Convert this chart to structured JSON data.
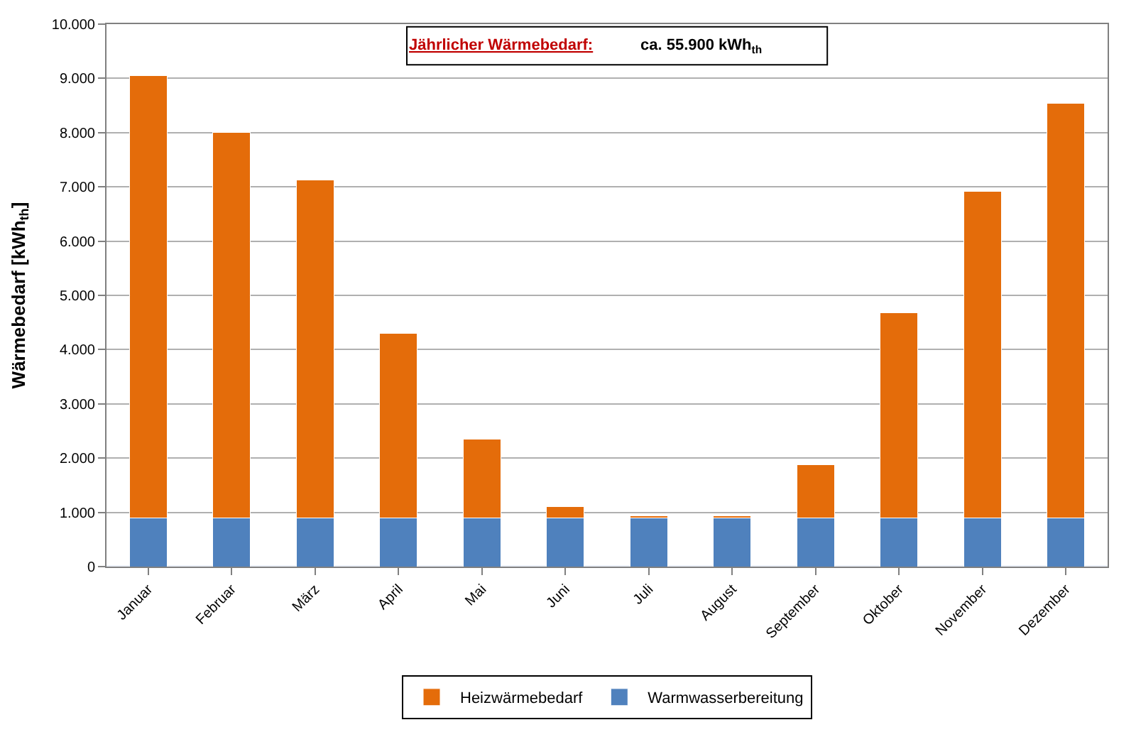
{
  "chart_data": {
    "type": "bar",
    "stacked": true,
    "ylabel": "Wärmebedarf [kWh$_{th}$]",
    "annotations": [
      "Jährlicher Wärmebedarf:",
      "ca. 55.900 kWh$_{th}$"
    ],
    "categories": [
      "Januar",
      "Februar",
      "März",
      "April",
      "Mai",
      "Juni",
      "Juli",
      "August",
      "September",
      "Oktober",
      "November",
      "Dezember"
    ],
    "series": [
      {
        "name": "Warmwasserbereitung",
        "color": "#4f81bd",
        "values": [
          900,
          900,
          900,
          900,
          900,
          900,
          900,
          900,
          900,
          900,
          900,
          900
        ]
      },
      {
        "name": "Heizwärmebedarf",
        "color": "#e46c0a",
        "values": [
          8150,
          7100,
          6230,
          3400,
          1450,
          200,
          30,
          40,
          980,
          3780,
          6020,
          7640
        ]
      }
    ],
    "ylim": [
      0,
      10000
    ],
    "yticks": [
      0,
      {
        "value": 1000,
        "label": "1.000"
      },
      {
        "value": 2000,
        "label": "2.000"
      },
      {
        "value": 3000,
        "label": "3.000"
      },
      {
        "value": 4000,
        "label": "4.000"
      },
      {
        "value": 5000,
        "label": "5.000"
      },
      {
        "value": 6000,
        "label": "6.000"
      },
      {
        "value": 7000,
        "label": "7.000"
      },
      {
        "value": 8000,
        "label": "8.000"
      },
      {
        "value": 9000,
        "label": "9.000"
      },
      {
        "value": 10000,
        "label": "10.000"
      }
    ],
    "grid": "y",
    "legend": "bottom"
  }
}
